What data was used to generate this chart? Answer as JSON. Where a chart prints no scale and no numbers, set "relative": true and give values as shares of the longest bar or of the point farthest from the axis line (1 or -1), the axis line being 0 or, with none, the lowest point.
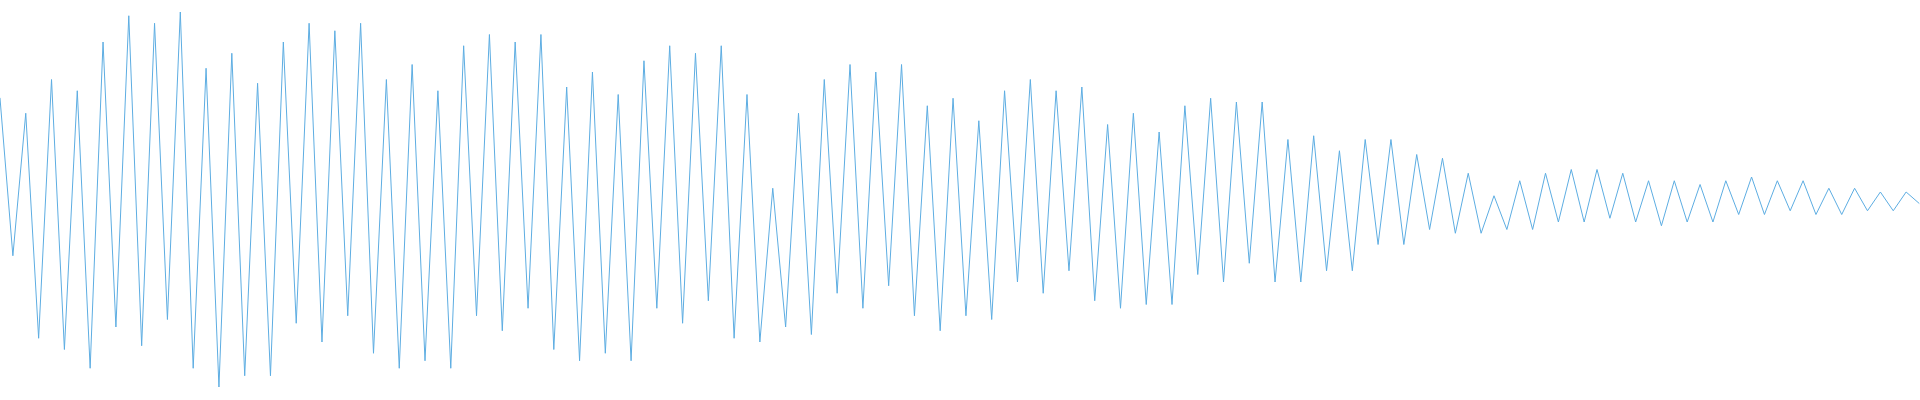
{
  "chart_data": {
    "type": "line",
    "relative": true,
    "marker": "none",
    "color": "#5dade2",
    "categories": [
      null,
      null,
      null,
      null,
      null,
      null,
      null,
      null,
      null,
      null,
      null,
      null,
      null,
      null,
      null,
      null,
      null,
      null,
      null,
      null,
      null,
      null,
      null,
      null,
      null,
      null,
      null,
      null,
      null,
      null,
      null,
      null,
      null,
      null,
      null,
      null,
      null,
      null,
      null,
      null,
      null,
      null,
      null,
      null,
      null,
      null,
      null,
      null,
      null,
      null,
      null,
      null,
      null,
      null,
      null,
      null,
      null,
      null,
      null,
      null,
      null,
      null,
      null,
      null,
      null,
      null,
      null,
      null,
      null,
      null,
      null,
      null,
      null,
      null,
      null,
      null,
      null,
      null,
      null,
      null,
      null,
      null,
      null,
      null,
      null,
      null,
      null,
      null,
      null,
      null,
      null,
      null,
      null,
      null,
      null,
      null,
      null,
      null,
      null,
      null,
      null,
      null,
      null,
      null,
      null,
      null,
      null,
      null,
      null,
      null,
      null,
      null,
      null,
      null,
      null,
      null,
      null,
      null,
      null,
      null,
      null,
      null,
      null,
      null,
      null,
      null,
      null,
      null,
      null,
      null,
      null,
      null,
      null,
      null,
      null,
      null,
      null,
      null,
      null,
      null,
      null,
      null,
      null,
      null,
      null,
      null,
      null,
      null,
      null,
      null
    ],
    "values": [
      0.77,
      0.35,
      0.73,
      0.13,
      0.82,
      0.1,
      0.79,
      0.05,
      0.92,
      0.16,
      0.99,
      0.11,
      0.97,
      0.18,
      1.0,
      0.05,
      0.85,
      0.0,
      0.89,
      0.03,
      0.81,
      0.03,
      0.92,
      0.17,
      0.97,
      0.12,
      0.95,
      0.19,
      0.97,
      0.09,
      0.82,
      0.05,
      0.86,
      0.07,
      0.79,
      0.05,
      0.91,
      0.19,
      0.94,
      0.15,
      0.92,
      0.21,
      0.94,
      0.1,
      0.8,
      0.07,
      0.84,
      0.09,
      0.78,
      0.07,
      0.87,
      0.21,
      0.91,
      0.17,
      0.89,
      0.23,
      0.91,
      0.13,
      0.78,
      0.12,
      0.53,
      0.16,
      0.73,
      0.14,
      0.82,
      0.25,
      0.86,
      0.21,
      0.84,
      0.27,
      0.86,
      0.19,
      0.75,
      0.15,
      0.77,
      0.19,
      0.71,
      0.18,
      0.79,
      0.28,
      0.82,
      0.25,
      0.79,
      0.31,
      0.8,
      0.23,
      0.7,
      0.21,
      0.73,
      0.22,
      0.68,
      0.22,
      0.75,
      0.3,
      0.77,
      0.28,
      0.76,
      0.33,
      0.76,
      0.28,
      0.66,
      0.28,
      0.67,
      0.31,
      0.63,
      0.31,
      0.66,
      0.38,
      0.66,
      0.38,
      0.62,
      0.42,
      0.61,
      0.41,
      0.57,
      0.41,
      0.51,
      0.42,
      0.55,
      0.42,
      0.57,
      0.44,
      0.58,
      0.44,
      0.58,
      0.45,
      0.57,
      0.44,
      0.55,
      0.43,
      0.55,
      0.44,
      0.54,
      0.44,
      0.55,
      0.46,
      0.56,
      0.46,
      0.55,
      0.47,
      0.55,
      0.46,
      0.53,
      0.46,
      0.53,
      0.47,
      0.52,
      0.47,
      0.52,
      0.49
    ]
  }
}
